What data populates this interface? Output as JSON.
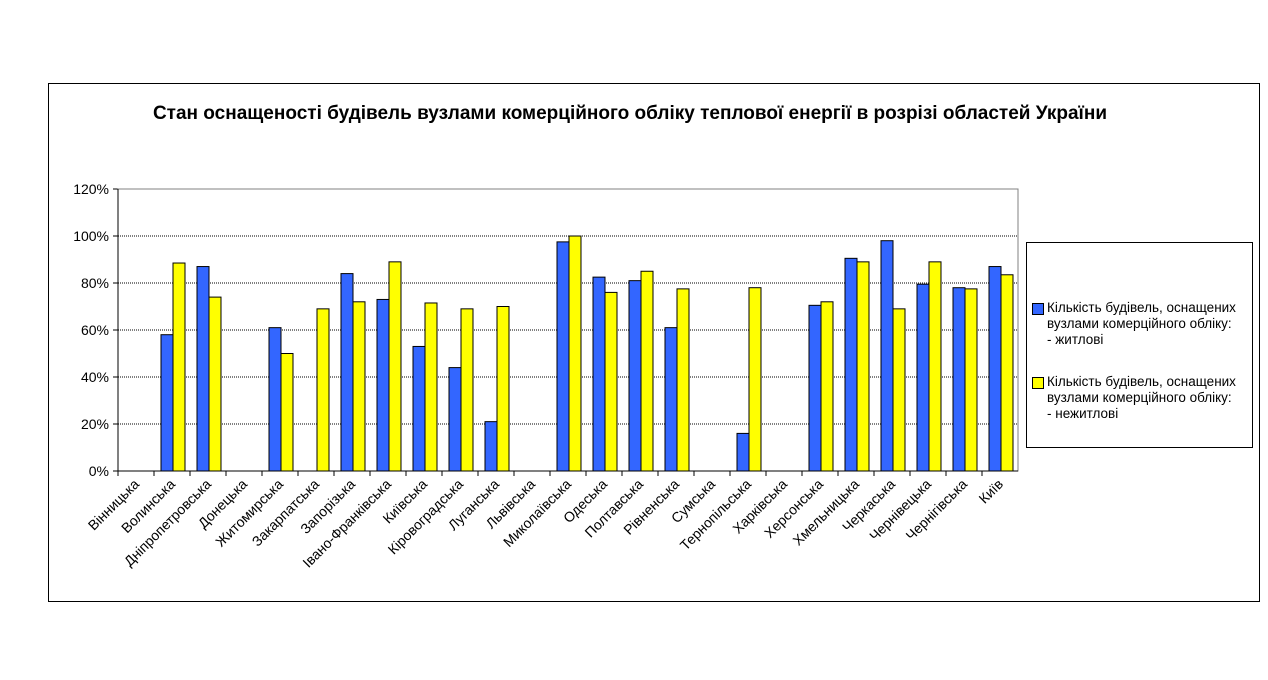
{
  "chart_data": {
    "type": "bar",
    "title": "Стан оснащеності будівель вузлами комерційного обліку теплової енергії в розрізі областей України",
    "xlabel": "",
    "ylabel": "",
    "ylim": [
      0,
      120
    ],
    "yticks": [
      "0%",
      "20%",
      "40%",
      "60%",
      "80%",
      "100%",
      "120%"
    ],
    "grid": true,
    "legend_position": "right",
    "categories": [
      "Вінницька",
      "Волинська",
      "Дніпропетровська",
      "Донецька",
      "Житомирська",
      "Закарпатська",
      "Запорізька",
      "Івано-Франківська",
      "Київська",
      "Кіровоградська",
      "Луганська",
      "Львівська",
      "Миколаївська",
      "Одеська",
      "Полтавська",
      "Рівненська",
      "Сумська",
      "Тернопільська",
      "Харківська",
      "Херсонська",
      "Хмельницька",
      "Черкаська",
      "Чернівецька",
      "Чернігівська",
      "Київ"
    ],
    "series": [
      {
        "name": "Кількість будівель, оснащених\nвузлами комерційного обліку:\n- житлові",
        "color": "#3366FF",
        "values": [
          0,
          58,
          87,
          0,
          61,
          0,
          84,
          73,
          53,
          44,
          21,
          0,
          97.5,
          82.5,
          81,
          61,
          0,
          16,
          0,
          70.5,
          90.5,
          98,
          79.5,
          78,
          87
        ]
      },
      {
        "name": "Кількість будівель, оснащених\nвузлами комерційного обліку:\n- нежитлові",
        "color": "#FFFF00",
        "values": [
          0,
          88.5,
          74,
          0,
          50,
          69,
          72,
          89,
          71.5,
          69,
          70,
          0,
          100,
          76,
          85,
          77.5,
          0,
          78,
          0,
          72,
          89,
          69,
          89,
          77.5,
          83.5
        ]
      }
    ]
  }
}
